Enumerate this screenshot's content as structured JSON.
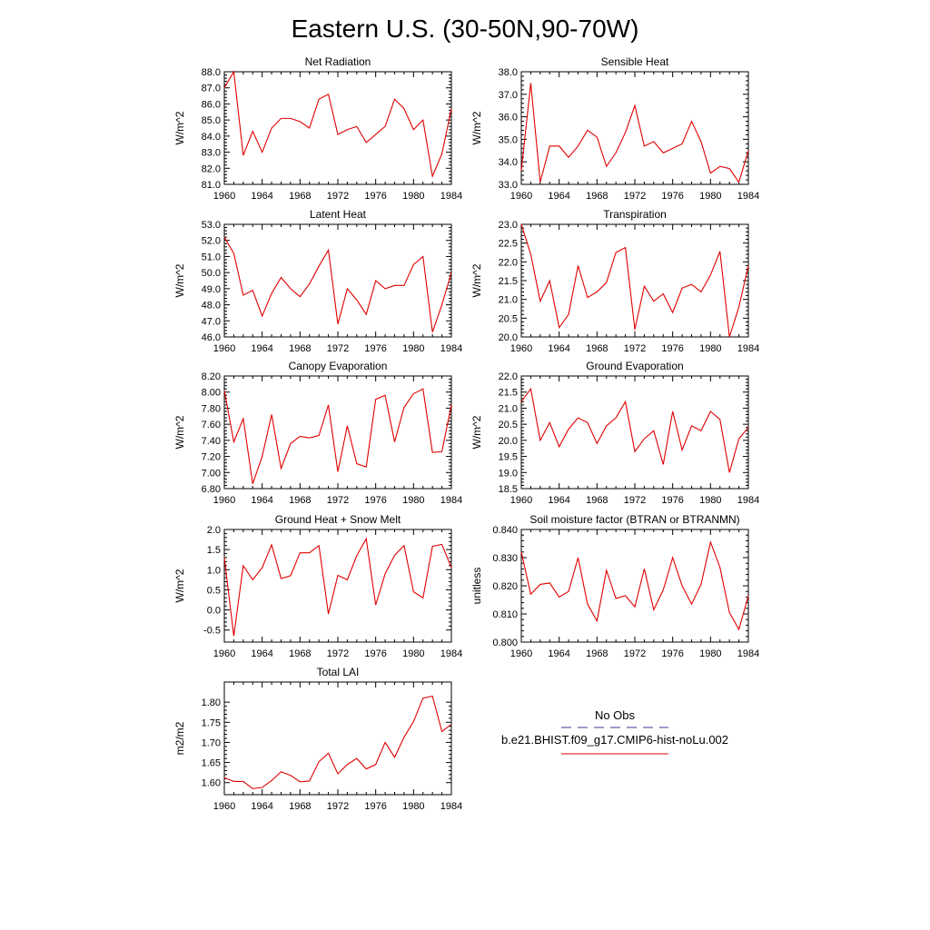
{
  "figure": {
    "title": "Eastern U.S. (30-50N,90-70W)",
    "line_color": "#e00000",
    "obs_color": "#3a3a9a"
  },
  "legend": {
    "obs_label": "No Obs",
    "model_label": "b.e21.BHIST.f09_g17.CMIP6-hist-noLu.002"
  },
  "chart_data": [
    {
      "type": "line",
      "title": "Net Radiation",
      "ylabel": "W/m^2",
      "xlim": [
        1960,
        1984
      ],
      "ylim": [
        81.0,
        88.0
      ],
      "yticks": [
        81.0,
        82.0,
        83.0,
        84.0,
        85.0,
        86.0,
        87.0,
        88.0
      ],
      "ytick_labels": [
        "81.0",
        "82.0",
        "83.0",
        "84.0",
        "85.0",
        "86.0",
        "87.0",
        "88.0"
      ],
      "xticks": [
        1960,
        1964,
        1968,
        1972,
        1976,
        1980,
        1984
      ],
      "xtick_labels": [
        "1960",
        "1964",
        "1968",
        "1972",
        "1976",
        "1980",
        "1984"
      ],
      "x": [
        1960,
        1961,
        1962,
        1963,
        1964,
        1965,
        1966,
        1967,
        1968,
        1969,
        1970,
        1971,
        1972,
        1973,
        1974,
        1975,
        1976,
        1977,
        1978,
        1979,
        1980,
        1981,
        1982,
        1983,
        1984
      ],
      "series": [
        {
          "values": [
            87.0,
            88.0,
            82.8,
            84.3,
            83.0,
            84.5,
            85.1,
            85.1,
            84.9,
            84.5,
            86.3,
            86.6,
            84.1,
            84.4,
            84.6,
            83.6,
            84.1,
            84.6,
            86.3,
            85.7,
            84.4,
            85.0,
            81.5,
            82.9,
            85.7
          ]
        }
      ]
    },
    {
      "type": "line",
      "title": "Sensible Heat",
      "ylabel": "W/m^2",
      "xlim": [
        1960,
        1984
      ],
      "ylim": [
        33.0,
        38.0
      ],
      "yticks": [
        33.0,
        34.0,
        35.0,
        36.0,
        37.0,
        38.0
      ],
      "ytick_labels": [
        "33.0",
        "34.0",
        "35.0",
        "36.0",
        "37.0",
        "38.0"
      ],
      "xticks": [
        1960,
        1964,
        1968,
        1972,
        1976,
        1980,
        1984
      ],
      "xtick_labels": [
        "1960",
        "1964",
        "1968",
        "1972",
        "1976",
        "1980",
        "1984"
      ],
      "x": [
        1960,
        1961,
        1962,
        1963,
        1964,
        1965,
        1966,
        1967,
        1968,
        1969,
        1970,
        1971,
        1972,
        1973,
        1974,
        1975,
        1976,
        1977,
        1978,
        1979,
        1980,
        1981,
        1982,
        1983,
        1984
      ],
      "series": [
        {
          "values": [
            33.6,
            37.5,
            33.1,
            34.7,
            34.7,
            34.2,
            34.7,
            35.4,
            35.1,
            33.8,
            34.4,
            35.3,
            36.5,
            34.7,
            34.9,
            34.4,
            34.6,
            34.8,
            35.8,
            34.9,
            33.5,
            33.8,
            33.7,
            33.1,
            34.5
          ]
        }
      ]
    },
    {
      "type": "line",
      "title": "Latent Heat",
      "ylabel": "W/m^2",
      "xlim": [
        1960,
        1984
      ],
      "ylim": [
        46.0,
        53.0
      ],
      "yticks": [
        46.0,
        47.0,
        48.0,
        49.0,
        50.0,
        51.0,
        52.0,
        53.0
      ],
      "ytick_labels": [
        "46.0",
        "47.0",
        "48.0",
        "49.0",
        "50.0",
        "51.0",
        "52.0",
        "53.0"
      ],
      "xticks": [
        1960,
        1964,
        1968,
        1972,
        1976,
        1980,
        1984
      ],
      "xtick_labels": [
        "1960",
        "1964",
        "1968",
        "1972",
        "1976",
        "1980",
        "1984"
      ],
      "x": [
        1960,
        1961,
        1962,
        1963,
        1964,
        1965,
        1966,
        1967,
        1968,
        1969,
        1970,
        1971,
        1972,
        1973,
        1974,
        1975,
        1976,
        1977,
        1978,
        1979,
        1980,
        1981,
        1982,
        1983,
        1984
      ],
      "series": [
        {
          "values": [
            52.2,
            51.2,
            48.6,
            48.9,
            47.3,
            48.7,
            49.7,
            49.0,
            48.5,
            49.3,
            50.4,
            51.4,
            46.8,
            49.0,
            48.3,
            47.4,
            49.5,
            49.0,
            49.2,
            49.2,
            50.5,
            51.0,
            46.3,
            48.0,
            50.0
          ]
        }
      ]
    },
    {
      "type": "line",
      "title": "Transpiration",
      "ylabel": "W/m^2",
      "xlim": [
        1960,
        1984
      ],
      "ylim": [
        20.0,
        23.0
      ],
      "yticks": [
        20.0,
        20.5,
        21.0,
        21.5,
        22.0,
        22.5,
        23.0
      ],
      "ytick_labels": [
        "20.0",
        "20.5",
        "21.0",
        "21.5",
        "22.0",
        "22.5",
        "23.0"
      ],
      "xticks": [
        1960,
        1964,
        1968,
        1972,
        1976,
        1980,
        1984
      ],
      "xtick_labels": [
        "1960",
        "1964",
        "1968",
        "1972",
        "1976",
        "1980",
        "1984"
      ],
      "x": [
        1960,
        1961,
        1962,
        1963,
        1964,
        1965,
        1966,
        1967,
        1968,
        1969,
        1970,
        1971,
        1972,
        1973,
        1974,
        1975,
        1976,
        1977,
        1978,
        1979,
        1980,
        1981,
        1982,
        1983,
        1984
      ],
      "series": [
        {
          "values": [
            23.0,
            22.2,
            20.95,
            21.5,
            20.25,
            20.6,
            21.9,
            21.05,
            21.2,
            21.45,
            22.25,
            22.38,
            20.2,
            21.35,
            20.95,
            21.15,
            20.65,
            21.3,
            21.4,
            21.2,
            21.65,
            22.28,
            20.0,
            20.8,
            21.9
          ]
        }
      ]
    },
    {
      "type": "line",
      "title": "Canopy Evaporation",
      "ylabel": "W/m^2",
      "xlim": [
        1960,
        1984
      ],
      "ylim": [
        6.8,
        8.2
      ],
      "yticks": [
        6.8,
        7.0,
        7.2,
        7.4,
        7.6,
        7.8,
        8.0,
        8.2
      ],
      "ytick_labels": [
        "6.80",
        "7.00",
        "7.20",
        "7.40",
        "7.60",
        "7.80",
        "8.00",
        "8.20"
      ],
      "xticks": [
        1960,
        1964,
        1968,
        1972,
        1976,
        1980,
        1984
      ],
      "xtick_labels": [
        "1960",
        "1964",
        "1968",
        "1972",
        "1976",
        "1980",
        "1984"
      ],
      "x": [
        1960,
        1961,
        1962,
        1963,
        1964,
        1965,
        1966,
        1967,
        1968,
        1969,
        1970,
        1971,
        1972,
        1973,
        1974,
        1975,
        1976,
        1977,
        1978,
        1979,
        1980,
        1981,
        1982,
        1983,
        1984
      ],
      "series": [
        {
          "values": [
            8.02,
            7.38,
            7.67,
            6.86,
            7.2,
            7.72,
            7.05,
            7.36,
            7.45,
            7.43,
            7.46,
            7.84,
            7.01,
            7.58,
            7.11,
            7.07,
            7.91,
            7.96,
            7.38,
            7.81,
            7.98,
            8.04,
            7.25,
            7.26,
            7.84
          ]
        }
      ]
    },
    {
      "type": "line",
      "title": "Ground Evaporation",
      "ylabel": "W/m^2",
      "xlim": [
        1960,
        1984
      ],
      "ylim": [
        18.5,
        22.0
      ],
      "yticks": [
        18.5,
        19.0,
        19.5,
        20.0,
        20.5,
        21.0,
        21.5,
        22.0
      ],
      "ytick_labels": [
        "18.5",
        "19.0",
        "19.5",
        "20.0",
        "20.5",
        "21.0",
        "21.5",
        "22.0"
      ],
      "xticks": [
        1960,
        1964,
        1968,
        1972,
        1976,
        1980,
        1984
      ],
      "xtick_labels": [
        "1960",
        "1964",
        "1968",
        "1972",
        "1976",
        "1980",
        "1984"
      ],
      "x": [
        1960,
        1961,
        1962,
        1963,
        1964,
        1965,
        1966,
        1967,
        1968,
        1969,
        1970,
        1971,
        1972,
        1973,
        1974,
        1975,
        1976,
        1977,
        1978,
        1979,
        1980,
        1981,
        1982,
        1983,
        1984
      ],
      "series": [
        {
          "values": [
            21.2,
            21.6,
            20.0,
            20.55,
            19.8,
            20.35,
            20.7,
            20.55,
            19.9,
            20.45,
            20.7,
            21.2,
            19.65,
            20.05,
            20.3,
            19.25,
            20.9,
            19.7,
            20.45,
            20.3,
            20.9,
            20.65,
            19.0,
            20.05,
            20.4
          ]
        }
      ]
    },
    {
      "type": "line",
      "title": "Ground Heat + Snow Melt",
      "ylabel": "W/m^2",
      "xlim": [
        1960,
        1984
      ],
      "ylim": [
        -0.8,
        2.0
      ],
      "yticks": [
        -0.5,
        0.0,
        0.5,
        1.0,
        1.5,
        2.0
      ],
      "ytick_labels": [
        "-0.5",
        "0.0",
        "0.5",
        "1.0",
        "1.5",
        "2.0"
      ],
      "xticks": [
        1960,
        1964,
        1968,
        1972,
        1976,
        1980,
        1984
      ],
      "xtick_labels": [
        "1960",
        "1964",
        "1968",
        "1972",
        "1976",
        "1980",
        "1984"
      ],
      "x": [
        1960,
        1961,
        1962,
        1963,
        1964,
        1965,
        1966,
        1967,
        1968,
        1969,
        1970,
        1971,
        1972,
        1973,
        1974,
        1975,
        1976,
        1977,
        1978,
        1979,
        1980,
        1981,
        1982,
        1983,
        1984
      ],
      "series": [
        {
          "values": [
            1.3,
            -0.65,
            1.1,
            0.75,
            1.05,
            1.62,
            0.78,
            0.85,
            1.42,
            1.42,
            1.6,
            -0.1,
            0.86,
            0.75,
            1.35,
            1.77,
            0.12,
            0.9,
            1.36,
            1.6,
            0.45,
            0.3,
            1.58,
            1.63,
            1.05
          ]
        }
      ]
    },
    {
      "type": "line",
      "title": "Soil moisture factor (BTRAN or BTRANMN)",
      "ylabel": "unitless",
      "xlim": [
        1960,
        1984
      ],
      "ylim": [
        0.8,
        0.84
      ],
      "yticks": [
        0.8,
        0.81,
        0.82,
        0.83,
        0.84
      ],
      "ytick_labels": [
        "0.800",
        "0.810",
        "0.820",
        "0.830",
        "0.840"
      ],
      "xticks": [
        1960,
        1964,
        1968,
        1972,
        1976,
        1980,
        1984
      ],
      "xtick_labels": [
        "1960",
        "1964",
        "1968",
        "1972",
        "1976",
        "1980",
        "1984"
      ],
      "x": [
        1960,
        1961,
        1962,
        1963,
        1964,
        1965,
        1966,
        1967,
        1968,
        1969,
        1970,
        1971,
        1972,
        1973,
        1974,
        1975,
        1976,
        1977,
        1978,
        1979,
        1980,
        1981,
        1982,
        1983,
        1984
      ],
      "series": [
        {
          "values": [
            0.832,
            0.817,
            0.8205,
            0.821,
            0.816,
            0.818,
            0.83,
            0.8135,
            0.8075,
            0.8255,
            0.8155,
            0.8165,
            0.8125,
            0.826,
            0.8115,
            0.8185,
            0.83,
            0.82,
            0.8135,
            0.8205,
            0.8355,
            0.8265,
            0.8105,
            0.8045,
            0.8165
          ]
        }
      ]
    },
    {
      "type": "line",
      "title": "Total LAI",
      "ylabel": "m2/m2",
      "xlim": [
        1960,
        1984
      ],
      "ylim": [
        1.57,
        1.85
      ],
      "yticks": [
        1.6,
        1.65,
        1.7,
        1.75,
        1.8
      ],
      "ytick_labels": [
        "1.60",
        "1.65",
        "1.70",
        "1.75",
        "1.80"
      ],
      "xticks": [
        1960,
        1964,
        1968,
        1972,
        1976,
        1980,
        1984
      ],
      "xtick_labels": [
        "1960",
        "1964",
        "1968",
        "1972",
        "1976",
        "1980",
        "1984"
      ],
      "x": [
        1960,
        1961,
        1962,
        1963,
        1964,
        1965,
        1966,
        1967,
        1968,
        1969,
        1970,
        1971,
        1972,
        1973,
        1974,
        1975,
        1976,
        1977,
        1978,
        1979,
        1980,
        1981,
        1982,
        1983,
        1984
      ],
      "series": [
        {
          "values": [
            1.612,
            1.603,
            1.603,
            1.585,
            1.588,
            1.605,
            1.627,
            1.618,
            1.602,
            1.604,
            1.652,
            1.673,
            1.622,
            1.645,
            1.66,
            1.634,
            1.645,
            1.7,
            1.663,
            1.713,
            1.752,
            1.81,
            1.815,
            1.727,
            1.745
          ]
        }
      ]
    }
  ]
}
